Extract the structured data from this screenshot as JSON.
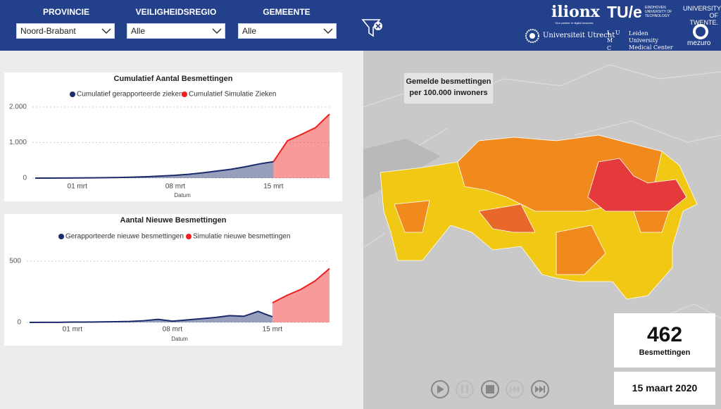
{
  "header": {
    "filters": [
      {
        "label": "PROVINCIE",
        "value": "Noord-Brabant"
      },
      {
        "label": "VEILIGHEIDSREGIO",
        "value": "Alle"
      },
      {
        "label": "GEMEENTE",
        "value": "Alle"
      }
    ],
    "logos": {
      "ilionx": "ilionx",
      "ilionx_tagline": "Your partner in digital business",
      "tue": "TU/e",
      "tue_sub": "EINDHOVEN UNIVERSITY OF TECHNOLOGY",
      "twente": "UNIVERSITY OF TWENTE.",
      "utrecht": "Universiteit Utrecht",
      "lumc": "L U M C",
      "leiden": "Leiden University Medical Center",
      "mezuro": "mezuro"
    }
  },
  "chart_data": [
    {
      "type": "area",
      "title": "Cumulatief Aantal Besmettingen",
      "x_label": "Datum",
      "categories": [
        null,
        null,
        null,
        "01 mrt",
        null,
        null,
        null,
        null,
        null,
        null,
        "08 mrt",
        null,
        null,
        null,
        null,
        null,
        null,
        "15 mrt",
        null,
        null,
        null,
        null
      ],
      "series": [
        {
          "name": "Cumulatief gerapporteerde zieken",
          "color": "#1b2a6b",
          "values": [
            0,
            1,
            2,
            5,
            8,
            12,
            18,
            26,
            40,
            60,
            80,
            110,
            150,
            200,
            250,
            320,
            400,
            462,
            null,
            null,
            null,
            null
          ]
        },
        {
          "name": "Cumulatief Simulatie Zieken",
          "color": "#f01e1e",
          "values": [
            null,
            null,
            null,
            null,
            null,
            null,
            null,
            null,
            null,
            null,
            null,
            null,
            null,
            null,
            null,
            null,
            null,
            462,
            1050,
            1230,
            1420,
            1800
          ]
        }
      ],
      "ylim": [
        0,
        2000
      ],
      "yticks": [
        0,
        {
          "value": 1000,
          "label": "1.000"
        },
        {
          "value": 2000,
          "label": "2.000"
        }
      ],
      "grid": true
    },
    {
      "type": "area",
      "title": "Aantal Nieuwe Besmettingen",
      "x_label": "Datum",
      "categories": [
        null,
        null,
        null,
        "01 mrt",
        null,
        null,
        null,
        null,
        null,
        null,
        "08 mrt",
        null,
        null,
        null,
        null,
        null,
        null,
        "15 mrt",
        null,
        null,
        null,
        null
      ],
      "series": [
        {
          "name": "Gerapporteerde nieuwe besmettingen",
          "color": "#1b2a6b",
          "values": [
            0,
            1,
            1,
            3,
            3,
            4,
            6,
            8,
            14,
            25,
            10,
            20,
            30,
            40,
            55,
            50,
            90,
            46,
            null,
            null,
            null,
            null
          ]
        },
        {
          "name": "Simulatie nieuwe besmettingen",
          "color": "#f01e1e",
          "values": [
            null,
            null,
            null,
            null,
            null,
            null,
            null,
            null,
            null,
            null,
            null,
            null,
            null,
            null,
            null,
            null,
            null,
            160,
            220,
            270,
            340,
            440
          ]
        }
      ],
      "ylim": [
        0,
        500
      ],
      "yticks": [
        0,
        500
      ],
      "grid": true
    }
  ],
  "map": {
    "legend_title": [
      "Gemelde besmettingen",
      "per 100.000 inwoners"
    ]
  },
  "kpi": {
    "value": "462",
    "label": "Besmettingen"
  },
  "date": "15 maart 2020"
}
